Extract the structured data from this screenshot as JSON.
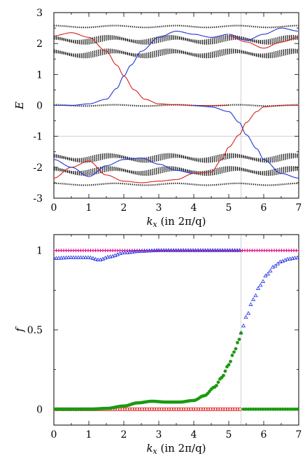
{
  "chart_data": [
    {
      "type": "line",
      "title": "",
      "xlabel": "k_x (in 2π/q)",
      "xlabel_parts": {
        "var": "k",
        "sub": "x",
        "rest": "(in 2π/q)"
      },
      "ylabel": "E",
      "xlim": [
        0,
        7
      ],
      "ylim": [
        -3,
        3
      ],
      "xticks": [
        "0",
        "1",
        "2",
        "3",
        "4",
        "5",
        "6",
        "7"
      ],
      "yticks": [
        "3",
        "2",
        "1",
        "0",
        "-1",
        "-2",
        "-3"
      ],
      "xtick_values": [
        0,
        1,
        2,
        3,
        4,
        5,
        6,
        7
      ],
      "ytick_values": [
        3,
        2,
        1,
        0,
        -1,
        -2,
        -3
      ],
      "reference_lines": {
        "horizontal_y": -1,
        "vertical_x": 5.35
      },
      "grid": false,
      "colors": {
        "red": "#d62020",
        "blue": "#1f35d6",
        "black": "#111111",
        "ref": "#c8c8c8"
      },
      "bulk_bands": [
        {
          "name": "",
          "center": 2.55,
          "amp": 0.03,
          "count": 1,
          "spacing": 0
        },
        {
          "name": "",
          "center": 2.12,
          "amp": 0.08,
          "count": 4,
          "spacing": 0.035
        },
        {
          "name": "",
          "center": 1.68,
          "amp": 0.08,
          "count": 4,
          "spacing": 0.035
        },
        {
          "name": "",
          "center": 0.0,
          "amp": 0.02,
          "count": 1,
          "spacing": 0
        },
        {
          "name": "",
          "center": -1.7,
          "amp": 0.08,
          "count": 4,
          "spacing": 0.035
        },
        {
          "name": "",
          "center": -2.12,
          "amp": 0.08,
          "count": 4,
          "spacing": 0.035
        },
        {
          "name": "",
          "center": -2.55,
          "amp": 0.03,
          "count": 1,
          "spacing": 0
        }
      ],
      "edge_states": [
        {
          "color": "red",
          "x": [
            0,
            0.5,
            1.0,
            1.5,
            1.8,
            2.0,
            2.3,
            2.6,
            3.0,
            3.5,
            4.0,
            4.5,
            5.0
          ],
          "y": [
            2.25,
            2.35,
            2.2,
            1.75,
            1.3,
            0.95,
            0.5,
            0.2,
            0.05,
            0.02,
            0.0,
            0.0,
            0.0
          ]
        },
        {
          "color": "blue",
          "x": [
            0,
            0.5,
            1.0,
            1.5,
            1.8,
            2.0,
            2.2,
            2.5,
            3.0,
            3.5,
            4.0,
            4.5,
            5.0
          ],
          "y": [
            0.0,
            0.0,
            0.05,
            0.2,
            0.55,
            0.95,
            1.3,
            1.75,
            2.2,
            2.4,
            2.3,
            2.2,
            2.3
          ]
        },
        {
          "color": "blue",
          "x": [
            4.0,
            4.5,
            5.0,
            5.3,
            5.5,
            5.8,
            6.0,
            6.5,
            7.0
          ],
          "y": [
            0.0,
            -0.05,
            -0.2,
            -0.55,
            -0.95,
            -1.4,
            -1.75,
            -2.2,
            -2.35
          ]
        },
        {
          "color": "red",
          "x": [
            4.0,
            4.5,
            4.8,
            5.0,
            5.3,
            5.5,
            5.8,
            6.0,
            6.5,
            7.0
          ],
          "y": [
            -2.2,
            -2.15,
            -1.75,
            -1.35,
            -0.95,
            -0.55,
            -0.2,
            -0.05,
            0.0,
            0.0
          ]
        },
        {
          "color": "red",
          "x": [
            0,
            0.5,
            1.0,
            1.5,
            2.0,
            2.5,
            3.0,
            3.5,
            4.0
          ],
          "y": [
            -2.35,
            -2.0,
            -1.8,
            -2.25,
            -2.45,
            -2.5,
            -2.45,
            -2.4,
            -2.2
          ]
        },
        {
          "color": "blue",
          "x": [
            0,
            0.5,
            1.0,
            1.5,
            2.0,
            2.5,
            3.0,
            3.5,
            4.0
          ],
          "y": [
            -1.75,
            -2.0,
            -2.3,
            -1.95,
            -1.75,
            -1.7,
            -1.9,
            -2.1,
            -2.2
          ]
        },
        {
          "color": "red",
          "x": [
            5.0,
            5.5,
            6.0,
            6.5,
            7.0
          ],
          "y": [
            2.25,
            2.05,
            1.85,
            2.05,
            2.2
          ]
        },
        {
          "color": "blue",
          "x": [
            5.0,
            5.5,
            6.0,
            6.5,
            7.0
          ],
          "y": [
            2.3,
            2.1,
            2.3,
            2.5,
            2.4
          ]
        }
      ]
    },
    {
      "type": "scatter",
      "title": "",
      "xlabel": "k_x (in 2π/q)",
      "xlabel_parts": {
        "var": "k",
        "sub": "x",
        "rest": "(in 2π/q)"
      },
      "ylabel": "f",
      "xlim": [
        0,
        7
      ],
      "ylim": [
        -0.1,
        1.1
      ],
      "xticks": [
        "0",
        "1",
        "2",
        "3",
        "4",
        "5",
        "6",
        "7"
      ],
      "yticks": [
        "1",
        "0.5",
        "0"
      ],
      "xtick_values": [
        0,
        1,
        2,
        3,
        4,
        5,
        6,
        7
      ],
      "ytick_values": [
        1,
        0.5,
        0
      ],
      "reference_lines": {
        "vertical_x": 5.35
      },
      "grid": false,
      "colors": {
        "magenta": "#e0108a",
        "red": "#e02020",
        "blue": "#2030e0",
        "green": "#1a9a10",
        "ref": "#c8c8c8"
      },
      "series": [
        {
          "name": "",
          "marker": "plus",
          "color": "magenta",
          "x": [
            0,
            7
          ],
          "y": [
            1.0,
            1.0
          ]
        },
        {
          "name": "",
          "marker": "open-circle",
          "color": "red",
          "x": [
            0,
            5.35
          ],
          "y": [
            0.0,
            0.0
          ]
        },
        {
          "name": "",
          "marker": "open-triangle",
          "color": "blue",
          "x": [
            0,
            0.5,
            1.0,
            1.3,
            1.6,
            2.0,
            2.5,
            3.0,
            5.35,
            5.5,
            5.7,
            5.9,
            6.1,
            6.3,
            6.5,
            6.7,
            6.9,
            7.0
          ],
          "y": [
            0.95,
            0.955,
            0.955,
            0.94,
            0.96,
            0.985,
            0.995,
            1.0,
            0.48,
            0.58,
            0.69,
            0.78,
            0.85,
            0.9,
            0.93,
            0.945,
            0.952,
            0.955
          ]
        },
        {
          "name": "",
          "marker": "filled-circle",
          "color": "green",
          "x": [
            0,
            1.0,
            1.5,
            2.0,
            2.4,
            2.8,
            3.2,
            3.6,
            4.0,
            4.3,
            4.6,
            4.8,
            5.0,
            5.15,
            5.3,
            5.35,
            5.45,
            7.0
          ],
          "y": [
            0.0,
            0.0,
            0.005,
            0.02,
            0.04,
            0.05,
            0.045,
            0.045,
            0.055,
            0.085,
            0.14,
            0.2,
            0.28,
            0.36,
            0.44,
            0.48,
            0.0,
            0.0
          ]
        }
      ]
    }
  ]
}
